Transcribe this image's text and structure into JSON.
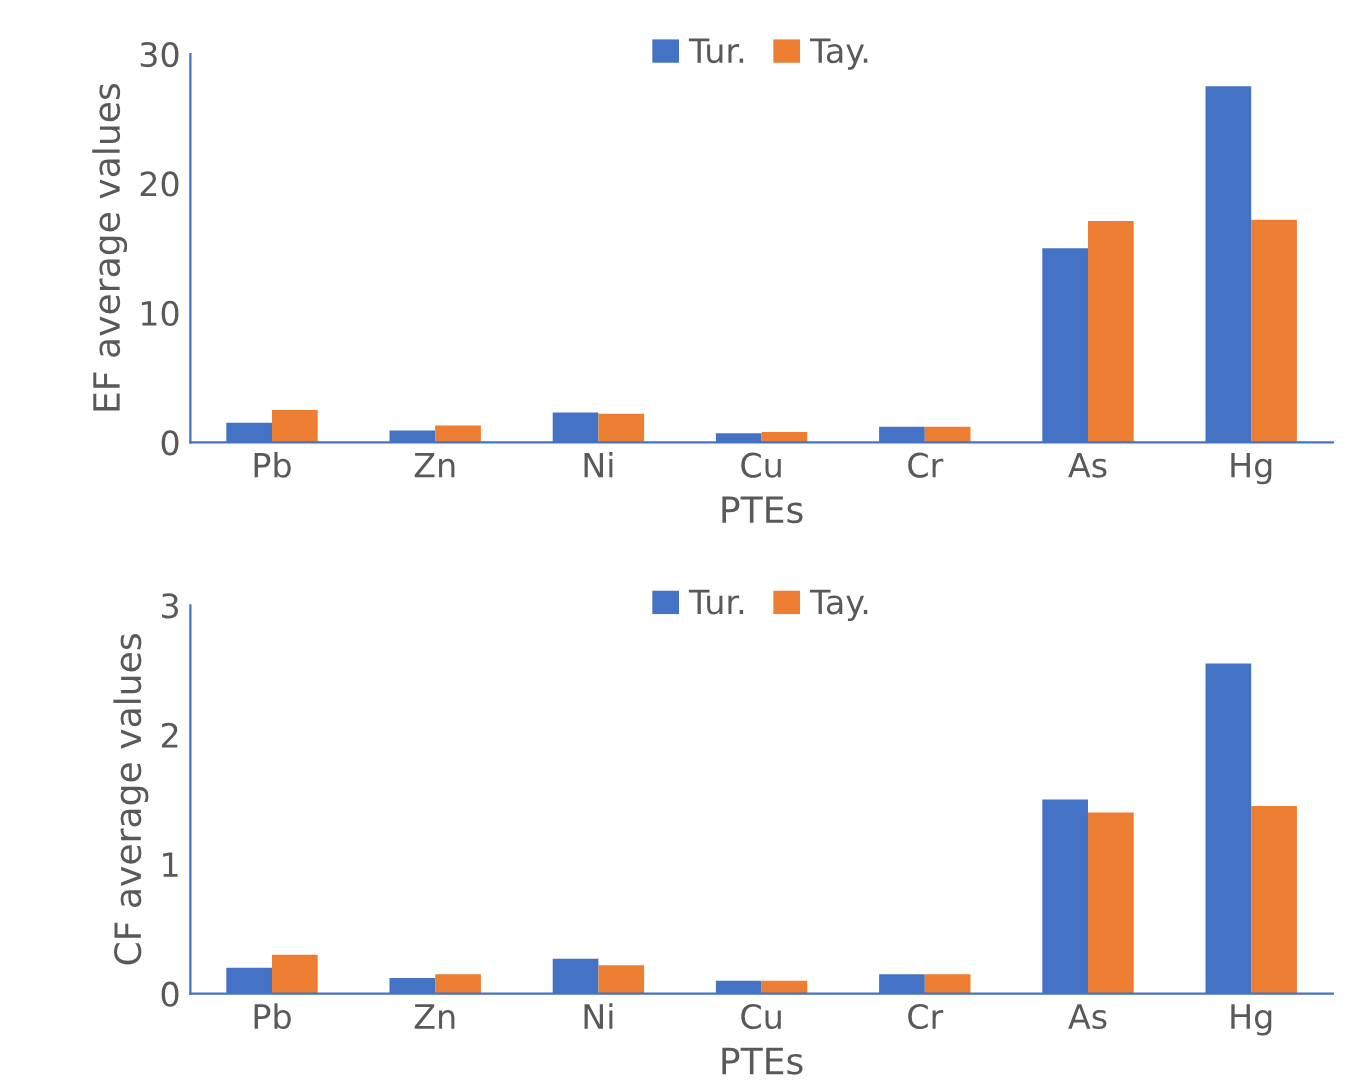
{
  "chart_data": [
    {
      "type": "bar",
      "ylabel": "EF average values",
      "xlabel": "PTEs",
      "categories": [
        "Pb",
        "Zn",
        "Ni",
        "Cu",
        "Cr",
        "As",
        "Hg"
      ],
      "series": [
        {
          "name": "Tur.",
          "color": "#4472c4",
          "values": [
            1.5,
            0.9,
            2.3,
            0.7,
            1.2,
            15,
            27.5
          ]
        },
        {
          "name": "Tay.",
          "color": "#ed7d31",
          "values": [
            2.5,
            1.3,
            2.2,
            0.8,
            1.2,
            17.1,
            17.2
          ]
        }
      ],
      "ylim": [
        0,
        30
      ],
      "yticks": [
        0,
        10,
        20,
        30
      ],
      "grid": false,
      "legend": "top"
    },
    {
      "type": "bar",
      "ylabel": "CF average values",
      "xlabel": "PTEs",
      "categories": [
        "Pb",
        "Zn",
        "Ni",
        "Cu",
        "Cr",
        "As",
        "Hg"
      ],
      "series": [
        {
          "name": "Tur.",
          "color": "#4472c4",
          "values": [
            0.2,
            0.12,
            0.27,
            0.1,
            0.15,
            1.5,
            2.55
          ]
        },
        {
          "name": "Tay.",
          "color": "#ed7d31",
          "values": [
            0.3,
            0.15,
            0.22,
            0.1,
            0.15,
            1.4,
            1.45
          ]
        }
      ],
      "ylim": [
        0,
        3
      ],
      "yticks": [
        0,
        1,
        2,
        3
      ],
      "grid": false,
      "legend": "top"
    }
  ]
}
